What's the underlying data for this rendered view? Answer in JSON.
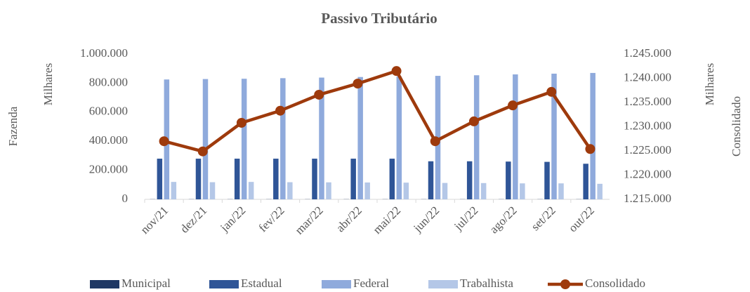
{
  "chart_data": {
    "type": "bar_line",
    "title": "Passivo Tributário",
    "y_axis_label": "Fazenda",
    "y_units_label": "Milhares",
    "y2_axis_label": "Consolidado",
    "y2_units_label": "Milhares",
    "categories": [
      "nov/21",
      "dez/21",
      "jan/22",
      "fev/22",
      "mar/22",
      "abr/22",
      "mai/22",
      "jun/22",
      "jul/22",
      "ago/22",
      "set/22",
      "out/22"
    ],
    "series": [
      {
        "name": "Municipal",
        "color": "#1f3864",
        "type": "bar",
        "values": [
          1000,
          1000,
          1000,
          1000,
          1000,
          1000,
          1000,
          1000,
          1000,
          1000,
          1000,
          1000
        ]
      },
      {
        "name": "Estadual",
        "color": "#2f5597",
        "type": "bar",
        "values": [
          280000,
          280000,
          280000,
          280000,
          280000,
          280000,
          280000,
          262000,
          262000,
          260000,
          258000,
          245000
        ]
      },
      {
        "name": "Federal",
        "color": "#8faadc",
        "type": "bar",
        "values": [
          825000,
          828000,
          830000,
          834000,
          838000,
          842000,
          846000,
          850000,
          854000,
          860000,
          865000,
          870000
        ]
      },
      {
        "name": "Trabalhista",
        "color": "#b4c7e7",
        "type": "bar",
        "values": [
          120000,
          118000,
          120000,
          118000,
          117000,
          116000,
          115000,
          113000,
          112000,
          110000,
          110000,
          107000
        ]
      },
      {
        "name": "Consolidado",
        "color": "#9e3a0c",
        "type": "line",
        "axis": "y2",
        "values": [
          1227000,
          1224900,
          1230800,
          1233300,
          1236600,
          1238900,
          1241500,
          1227000,
          1231100,
          1234400,
          1237200,
          1225400
        ]
      }
    ],
    "ylim": [
      0,
      1000000
    ],
    "yticks": [
      0,
      {
        "value": 200000,
        "label": "200.000"
      },
      {
        "value": 400000,
        "label": "400.000"
      },
      {
        "value": 600000,
        "label": "600.000"
      },
      {
        "value": 800000,
        "label": "800.000"
      },
      {
        "value": 1000000,
        "label": "1.000.000"
      }
    ],
    "y2lim": [
      1215000,
      1245000
    ],
    "y2ticks": [
      {
        "value": 1215000,
        "label": "1.215.000"
      },
      {
        "value": 1220000,
        "label": "1.220.000"
      },
      {
        "value": 1225000,
        "label": "1.225.000"
      },
      {
        "value": 1230000,
        "label": "1.230.000"
      },
      {
        "value": 1235000,
        "label": "1.235.000"
      },
      {
        "value": 1240000,
        "label": "1.240.000"
      },
      {
        "value": 1245000,
        "label": "1.245.000"
      }
    ],
    "grid": false,
    "legend": "bottom"
  }
}
